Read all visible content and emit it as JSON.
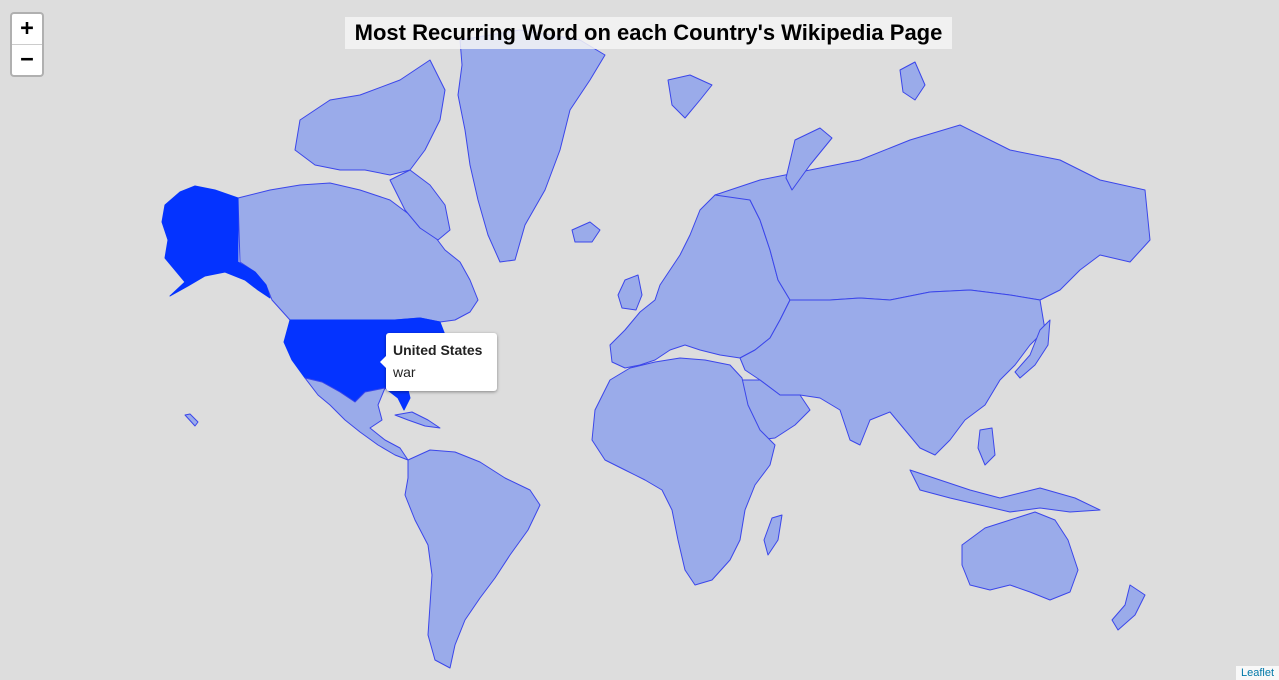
{
  "map": {
    "title": "Most Recurring Word on each Country's Wikipedia Page",
    "colors": {
      "background": "#dddddd",
      "country_fill": "#9aabea",
      "country_border": "#3b46ea",
      "highlight": "#0433ff"
    },
    "highlighted_country": "United States"
  },
  "zoom": {
    "in_label": "+",
    "out_label": "−"
  },
  "tooltip": {
    "country": "United States",
    "word": "war"
  },
  "attribution": {
    "label": "Leaflet"
  }
}
